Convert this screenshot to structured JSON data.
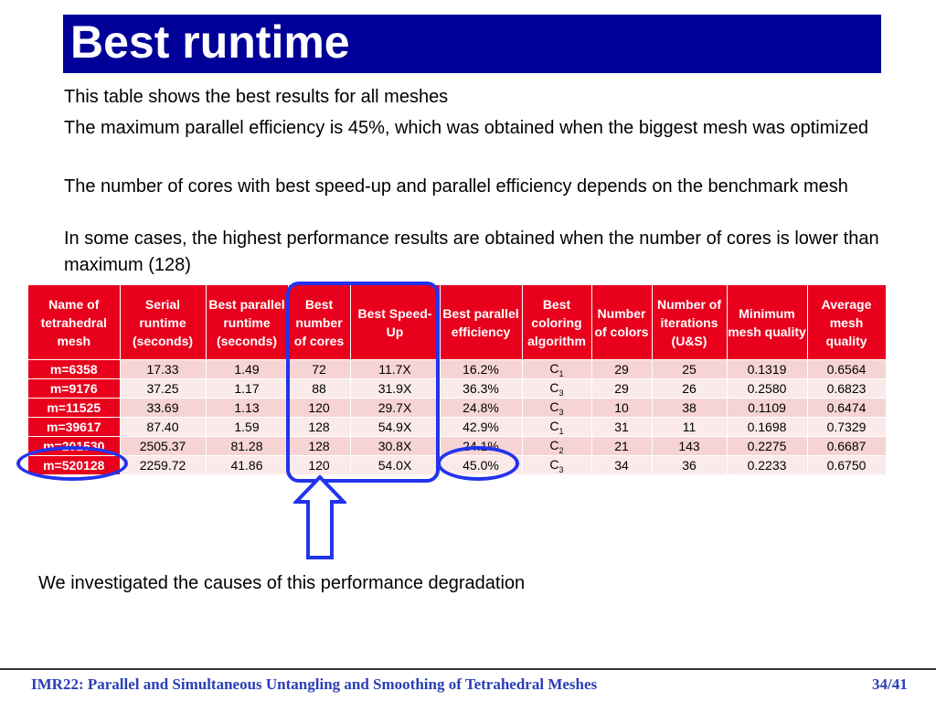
{
  "slide": {
    "title": "Best runtime",
    "paragraphs": [
      "This table shows the best results for all meshes",
      "The maximum parallel efficiency is 45%, which was obtained when the biggest mesh was optimized",
      "The number of cores with best speed-up and parallel efficiency depends on the benchmark mesh",
      "In some cases, the highest performance results are obtained when the number of cores is lower than maximum (128)"
    ],
    "note": "We investigated the causes of this performance degradation"
  },
  "table": {
    "headers": [
      "Name of tetrahedral mesh",
      "Serial runtime (seconds)",
      "Best parallel runtime (seconds)",
      "Best number of cores",
      "Best Speed-Up",
      "Best parallel efficiency",
      "Best coloring algorithm",
      "Number of colors",
      "Number of iterations (U&S)",
      "Minimum mesh quality",
      "Average mesh quality"
    ],
    "rows": [
      {
        "mesh": "m=6358",
        "serial": "17.33",
        "parallel": "1.49",
        "cores": "72",
        "speedup": "11.7X",
        "efficiency": "16.2%",
        "algo": "C",
        "algo_sub": "1",
        "colors": "29",
        "iterations": "25",
        "min_quality": "0.1319",
        "avg_quality": "0.6564"
      },
      {
        "mesh": "m=9176",
        "serial": "37.25",
        "parallel": "1.17",
        "cores": "88",
        "speedup": "31.9X",
        "efficiency": "36.3%",
        "algo": "C",
        "algo_sub": "3",
        "colors": "29",
        "iterations": "26",
        "min_quality": "0.2580",
        "avg_quality": "0.6823"
      },
      {
        "mesh": "m=11525",
        "serial": "33.69",
        "parallel": "1.13",
        "cores": "120",
        "speedup": "29.7X",
        "efficiency": "24.8%",
        "algo": "C",
        "algo_sub": "3",
        "colors": "10",
        "iterations": "38",
        "min_quality": "0.1109",
        "avg_quality": "0.6474"
      },
      {
        "mesh": "m=39617",
        "serial": "87.40",
        "parallel": "1.59",
        "cores": "128",
        "speedup": "54.9X",
        "efficiency": "42.9%",
        "algo": "C",
        "algo_sub": "1",
        "colors": "31",
        "iterations": "11",
        "min_quality": "0.1698",
        "avg_quality": "0.7329"
      },
      {
        "mesh": "m=201530",
        "serial": "2505.37",
        "parallel": "81.28",
        "cores": "128",
        "speedup": "30.8X",
        "efficiency": "24.1%",
        "algo": "C",
        "algo_sub": "2",
        "colors": "21",
        "iterations": "143",
        "min_quality": "0.2275",
        "avg_quality": "0.6687"
      },
      {
        "mesh": "m=520128",
        "serial": "2259.72",
        "parallel": "41.86",
        "cores": "120",
        "speedup": "54.0X",
        "efficiency": "45.0%",
        "algo": "C",
        "algo_sub": "3",
        "colors": "34",
        "iterations": "36",
        "min_quality": "0.2233",
        "avg_quality": "0.6750"
      }
    ]
  },
  "footer": {
    "text": "IMR22: Parallel and Simultaneous Untangling and Smoothing of Tetrahedral Meshes",
    "page": "34/41"
  },
  "colors": {
    "title_bg": "#000099",
    "table_header": "#e8001d",
    "highlight": "#2233ee",
    "footer_text": "#2a3fb5"
  }
}
